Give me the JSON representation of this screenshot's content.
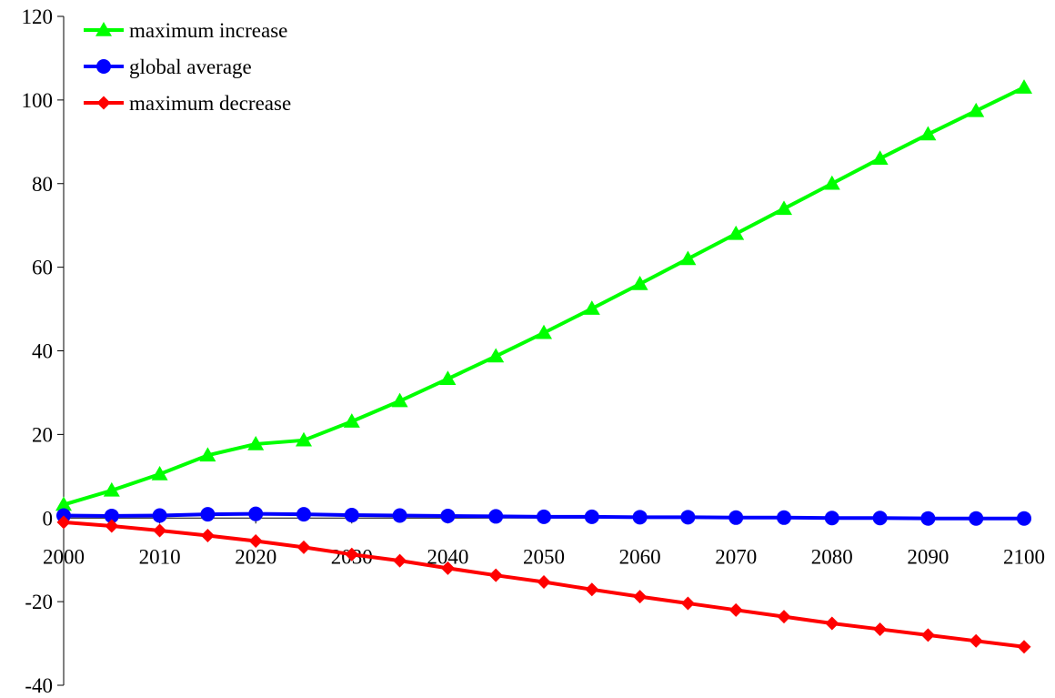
{
  "chart_data": {
    "type": "line",
    "title": "",
    "xlabel": "",
    "ylabel": "",
    "x": [
      2000,
      2005,
      2010,
      2015,
      2020,
      2025,
      2030,
      2035,
      2040,
      2045,
      2050,
      2055,
      2060,
      2065,
      2070,
      2075,
      2080,
      2085,
      2090,
      2095,
      2100
    ],
    "xlim": [
      2000,
      2100
    ],
    "ylim": [
      -40,
      120
    ],
    "x_ticks": [
      "2000",
      "2010",
      "2020",
      "2030",
      "2040",
      "2050",
      "2060",
      "2070",
      "2080",
      "2090",
      "2100"
    ],
    "y_ticks": [
      "120",
      "100",
      "80",
      "60",
      "40",
      "20",
      "0",
      "-20",
      "-40"
    ],
    "grid": false,
    "legend_position": "top-left",
    "series": [
      {
        "name": "maximum increase",
        "color": "#00ff00",
        "marker": "triangle",
        "values": [
          3.2,
          6.6,
          10.5,
          15.0,
          17.7,
          18.6,
          23.1,
          28.0,
          33.3,
          38.7,
          44.3,
          50.1,
          56.0,
          62.0,
          68.0,
          74.0,
          80.0,
          86.0,
          91.8,
          97.4,
          103.0
        ]
      },
      {
        "name": "global average",
        "color": "#0000ff",
        "marker": "circle",
        "values": [
          0.6,
          0.5,
          0.6,
          0.9,
          1.0,
          0.9,
          0.7,
          0.6,
          0.5,
          0.4,
          0.3,
          0.3,
          0.2,
          0.2,
          0.1,
          0.1,
          0.0,
          0.0,
          -0.1,
          -0.1,
          -0.1
        ]
      },
      {
        "name": "maximum decrease",
        "color": "#ff0000",
        "marker": "diamond",
        "values": [
          -1.0,
          -1.9,
          -3.0,
          -4.2,
          -5.5,
          -7.0,
          -8.7,
          -10.2,
          -12.0,
          -13.7,
          -15.3,
          -17.1,
          -18.8,
          -20.4,
          -22.0,
          -23.6,
          -25.2,
          -26.6,
          -28.0,
          -29.4,
          -30.8
        ]
      }
    ]
  }
}
